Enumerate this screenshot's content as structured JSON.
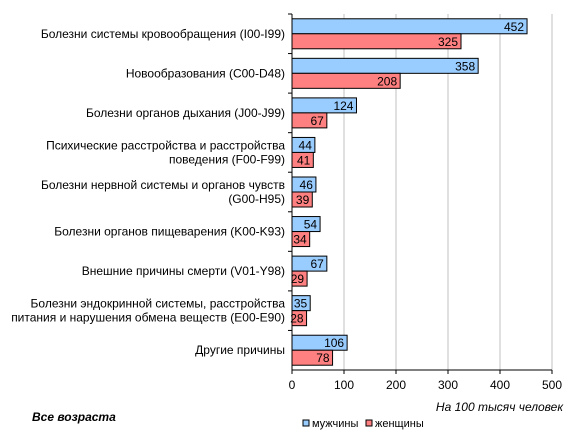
{
  "chart_data": {
    "type": "bar",
    "orientation": "horizontal",
    "categories": [
      [
        "Болезни системы кровообращения (I00-I99)"
      ],
      [
        "Новообразования (C00-D48)"
      ],
      [
        "Болезни органов дыхания (J00-J99)"
      ],
      [
        "Психические расстройства и расстройства",
        "поведения (F00-F99)"
      ],
      [
        "Болезни нервной системы и органов чувств",
        "(G00-H95)"
      ],
      [
        "Болезни органов пищеварения (K00-K93)"
      ],
      [
        "Внешние причины смерти (V01-Y98)"
      ],
      [
        "Болезни эндокринной системы, расстройства",
        "питания и нарушения обмена веществ  (E00-E90)"
      ],
      [
        "Другие причины"
      ]
    ],
    "series": [
      {
        "name": "мужчины",
        "values": [
          452,
          358,
          124,
          44,
          46,
          54,
          67,
          35,
          106
        ]
      },
      {
        "name": "женщины",
        "values": [
          325,
          208,
          67,
          41,
          39,
          34,
          29,
          28,
          78
        ]
      }
    ],
    "xlim": [
      0,
      500
    ],
    "xticks": [
      0,
      100,
      200,
      300,
      400,
      500
    ],
    "xlabel": "На 100 тысяч человек",
    "annotation": "Все возраста",
    "grid": "vertical",
    "legend_position": "bottom"
  },
  "colors": {
    "men": "#99ccff",
    "women": "#ff8080",
    "border": "#000000",
    "grid": "#c0c0c0"
  }
}
